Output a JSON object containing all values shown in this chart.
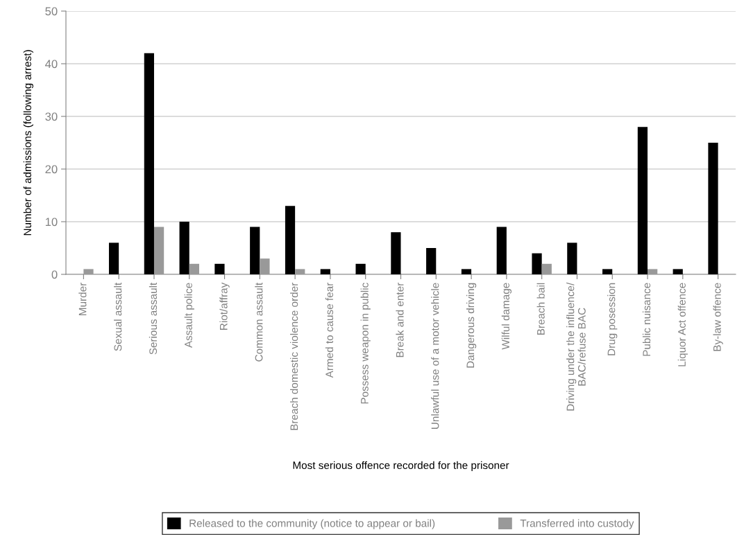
{
  "chart_data": {
    "type": "bar",
    "xlabel": "Most serious offence recorded for the prisoner",
    "ylabel": "Number of admissions (following arrest)",
    "categories": [
      "Murder",
      "Sexual assault",
      "Serious assault",
      "Assault police",
      "Riot/affray",
      "Common assault",
      "Breach domestic violence order",
      "Armed to cause fear",
      "Possess weapon in public",
      "Break and enter",
      "Unlawful use of a motor vehicle",
      "Dangerous driving",
      "Wilful damage",
      "Breach bail",
      "Driving under the influence/\nBAC/refuse BAC",
      "Drug posession",
      "Public nuisance",
      "Liquor Act offence",
      "By-law offence"
    ],
    "series": [
      {
        "name": "Released to the community (notice to appear or bail)",
        "color": "#000000",
        "values": [
          0,
          6,
          42,
          10,
          2,
          9,
          13,
          1,
          2,
          8,
          5,
          1,
          9,
          4,
          6,
          1,
          28,
          1,
          25
        ]
      },
      {
        "name": "Transferred into custody",
        "color": "#999999",
        "values": [
          1,
          0,
          9,
          2,
          0,
          3,
          1,
          0,
          0,
          0,
          0,
          0,
          0,
          2,
          0,
          0,
          1,
          0,
          0
        ]
      }
    ],
    "ylim": [
      0,
      50
    ],
    "yticks": [
      0,
      10,
      20,
      30,
      40,
      50
    ],
    "grid": "y",
    "legend": "bottom"
  }
}
